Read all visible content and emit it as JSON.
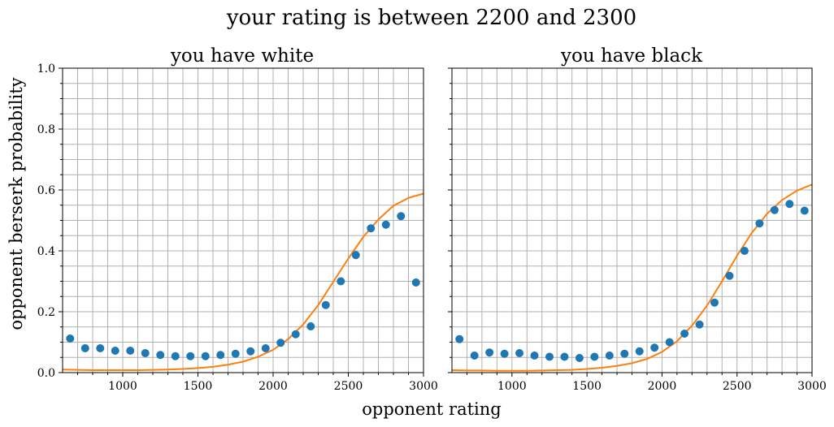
{
  "figure": {
    "suptitle": "your rating is between 2200 and 2300",
    "xlabel": "opponent rating",
    "ylabel": "opponent berserk probability"
  },
  "colors": {
    "points": "#1f77b4",
    "curve": "#ff7f0e",
    "grid": "#b0b0b0"
  },
  "chart_data": [
    {
      "type": "scatter",
      "title": "you have white",
      "xlim": [
        600,
        3000
      ],
      "ylim": [
        0.0,
        1.0
      ],
      "xticks": [
        "1000",
        "1500",
        "2000",
        "2500",
        "3000"
      ],
      "yticks": [
        "0.0",
        "0.2",
        "0.4",
        "0.6",
        "0.8",
        "1.0"
      ],
      "grid": true,
      "series": [
        {
          "kind": "points",
          "x": [
            650,
            750,
            850,
            950,
            1050,
            1150,
            1250,
            1350,
            1450,
            1550,
            1650,
            1750,
            1850,
            1950,
            2050,
            2150,
            2250,
            2350,
            2450,
            2550,
            2650,
            2750,
            2850,
            2950
          ],
          "y": [
            0.112,
            0.08,
            0.08,
            0.072,
            0.072,
            0.064,
            0.058,
            0.054,
            0.054,
            0.054,
            0.058,
            0.062,
            0.07,
            0.08,
            0.098,
            0.126,
            0.152,
            0.222,
            0.3,
            0.386,
            0.474,
            0.486,
            0.514,
            0.296
          ]
        },
        {
          "kind": "curve",
          "x": [
            600,
            700,
            800,
            900,
            1000,
            1100,
            1200,
            1300,
            1400,
            1500,
            1600,
            1700,
            1800,
            1900,
            2000,
            2100,
            2200,
            2300,
            2400,
            2500,
            2600,
            2700,
            2800,
            2900,
            3000
          ],
          "y": [
            0.01,
            0.009,
            0.008,
            0.008,
            0.008,
            0.008,
            0.009,
            0.01,
            0.012,
            0.015,
            0.019,
            0.026,
            0.036,
            0.052,
            0.075,
            0.11,
            0.158,
            0.222,
            0.298,
            0.375,
            0.446,
            0.503,
            0.548,
            0.574,
            0.588
          ]
        }
      ]
    },
    {
      "type": "scatter",
      "title": "you have black",
      "xlim": [
        600,
        3000
      ],
      "ylim": [
        0.0,
        1.0
      ],
      "xticks": [
        "1000",
        "1500",
        "2000",
        "2500",
        "3000"
      ],
      "grid": true,
      "series": [
        {
          "kind": "points",
          "x": [
            650,
            750,
            850,
            950,
            1050,
            1150,
            1250,
            1350,
            1450,
            1550,
            1650,
            1750,
            1850,
            1950,
            2050,
            2150,
            2250,
            2350,
            2450,
            2550,
            2650,
            2750,
            2850,
            2950
          ],
          "y": [
            0.11,
            0.056,
            0.066,
            0.062,
            0.064,
            0.056,
            0.052,
            0.052,
            0.048,
            0.052,
            0.056,
            0.062,
            0.07,
            0.082,
            0.1,
            0.128,
            0.158,
            0.23,
            0.318,
            0.4,
            0.49,
            0.534,
            0.554,
            0.532
          ]
        },
        {
          "kind": "curve",
          "x": [
            600,
            700,
            800,
            900,
            1000,
            1100,
            1200,
            1300,
            1400,
            1500,
            1600,
            1700,
            1800,
            1900,
            2000,
            2100,
            2200,
            2300,
            2400,
            2500,
            2600,
            2700,
            2800,
            2900,
            3000
          ],
          "y": [
            0.008,
            0.007,
            0.007,
            0.006,
            0.006,
            0.006,
            0.007,
            0.008,
            0.009,
            0.012,
            0.016,
            0.022,
            0.031,
            0.045,
            0.068,
            0.103,
            0.154,
            0.22,
            0.3,
            0.384,
            0.46,
            0.522,
            0.567,
            0.598,
            0.618
          ]
        }
      ]
    }
  ]
}
